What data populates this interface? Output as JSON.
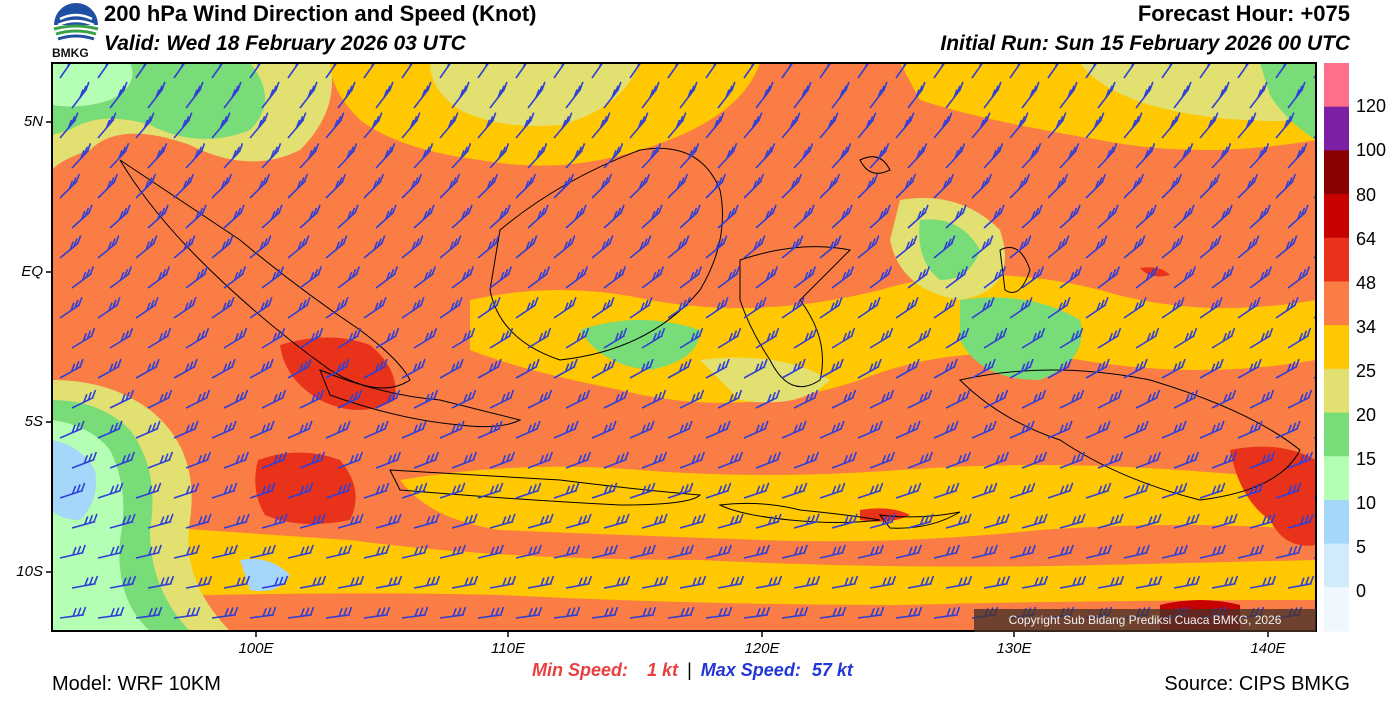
{
  "header": {
    "title": "200 hPa Wind Direction and Speed (Knot)",
    "valid": "Valid: Wed 18 February 2026 03 UTC",
    "forecast_hour": "Forecast Hour: +075",
    "initial_run": "Initial Run: Sun 15 February 2026 00 UTC"
  },
  "logo": {
    "text": "BMKG",
    "icon": "bmkg-logo-icon"
  },
  "map": {
    "domain_lon": [
      92,
      142
    ],
    "domain_lat": [
      -12,
      7
    ],
    "lat_labels": [
      "5N",
      "EQ",
      "5S",
      "10S"
    ],
    "lon_labels": [
      "100E",
      "110E",
      "120E",
      "130E",
      "140E"
    ],
    "copyright": "Copyright Sub Bidang Prediksi Cuaca BMKG, 2026",
    "barb_color": "#2f3fd8"
  },
  "colorbar": {
    "labels": [
      "120",
      "100",
      "80",
      "64",
      "48",
      "34",
      "25",
      "20",
      "15",
      "10",
      "5",
      "0"
    ],
    "colors": [
      "#ff6e8a",
      "#7d1fa5",
      "#8b0000",
      "#c80000",
      "#e8321a",
      "#fa7d46",
      "#ffc800",
      "#e2e070",
      "#78dc78",
      "#b4ffb4",
      "#a5d7fa",
      "#d2ebfa",
      "#f0f8ff"
    ]
  },
  "footer": {
    "model": "Model: WRF 10KM",
    "source": "Source: CIPS BMKG",
    "min_speed_label": "Min Speed:",
    "min_speed_value": "1 kt",
    "separator": "|",
    "max_speed_label": "Max Speed:",
    "max_speed_value": "57 kt"
  }
}
